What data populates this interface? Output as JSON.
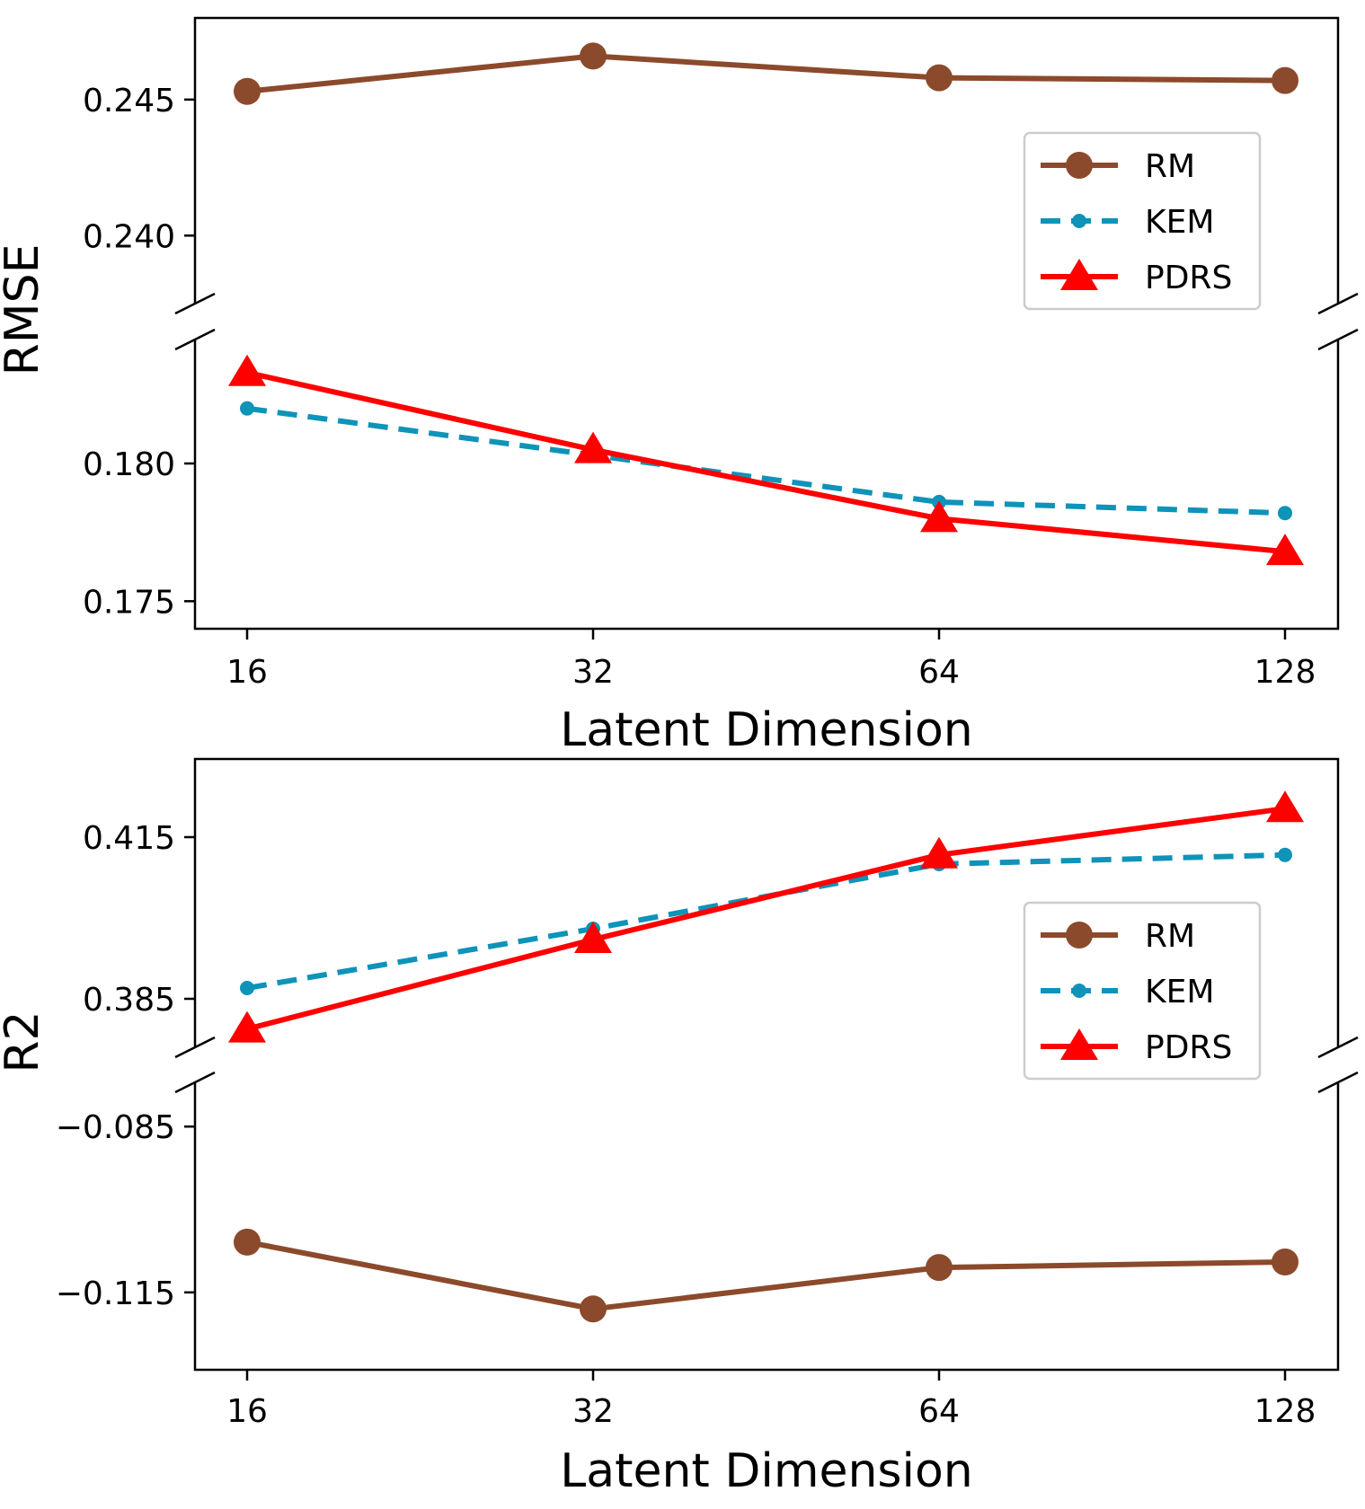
{
  "chart_data": [
    {
      "type": "line",
      "broken_y_axis": true,
      "x": [
        "16",
        "32",
        "64",
        "128"
      ],
      "xlabel": "Latent Dimension",
      "ylabel": "RMSE",
      "upper_segment": {
        "ylim": [
          0.2375,
          0.248
        ],
        "yticks": [
          "0.240",
          "0.245"
        ]
      },
      "lower_segment": {
        "ylim": [
          0.174,
          0.1845
        ],
        "yticks": [
          "0.175",
          "0.180"
        ]
      },
      "series": [
        {
          "name": "RM",
          "color": "#8b4a2b",
          "style": "solid",
          "marker": "circle",
          "values": [
            0.2453,
            0.2466,
            0.2458,
            0.2457
          ]
        },
        {
          "name": "KEM",
          "color": "#0e93b9",
          "style": "dashed",
          "marker": "dot",
          "values": [
            0.182,
            0.1803,
            0.1786,
            0.1782
          ]
        },
        {
          "name": "PDRS",
          "color": "#ff0000",
          "style": "solid",
          "marker": "triangle",
          "values": [
            0.1833,
            0.1805,
            0.178,
            0.1768
          ]
        }
      ],
      "legend": "upper-right"
    },
    {
      "type": "line",
      "broken_y_axis": true,
      "x": [
        "16",
        "32",
        "64",
        "128"
      ],
      "xlabel": "Latent Dimension",
      "ylabel": "R2",
      "upper_segment": {
        "ylim": [
          0.376,
          0.4295
        ],
        "yticks": [
          "0.385",
          "0.415"
        ]
      },
      "lower_segment": {
        "ylim": [
          -0.129,
          -0.077
        ],
        "yticks": [
          "−0.085",
          "−0.115"
        ]
      },
      "series": [
        {
          "name": "RM",
          "color": "#8b4a2b",
          "style": "solid",
          "marker": "circle",
          "values": [
            -0.1059,
            -0.118,
            -0.1105,
            -0.1095
          ]
        },
        {
          "name": "KEM",
          "color": "#0e93b9",
          "style": "dashed",
          "marker": "dot",
          "values": [
            0.387,
            0.398,
            0.41,
            0.4117
          ]
        },
        {
          "name": "PDRS",
          "color": "#ff0000",
          "style": "solid",
          "marker": "triangle",
          "values": [
            0.3794,
            0.396,
            0.4117,
            0.4203
          ]
        }
      ],
      "legend": "right"
    }
  ]
}
